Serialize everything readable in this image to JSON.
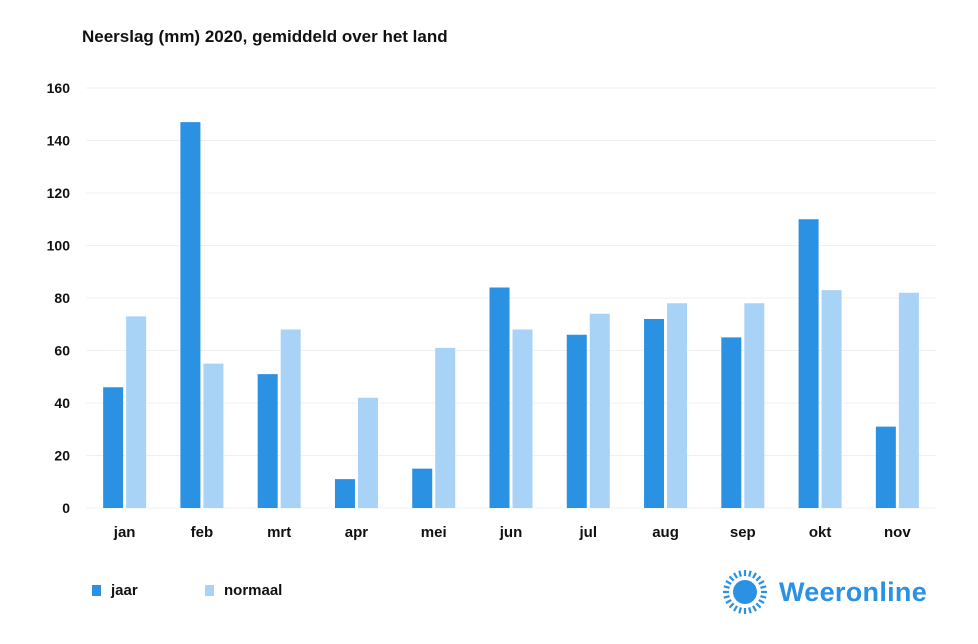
{
  "chart_data": {
    "type": "bar",
    "title": "Neerslag (mm) 2020, gemiddeld over het land",
    "categories": [
      "jan",
      "feb",
      "mrt",
      "apr",
      "mei",
      "jun",
      "jul",
      "aug",
      "sep",
      "okt",
      "nov"
    ],
    "series": [
      {
        "name": "jaar",
        "values": [
          46,
          147,
          51,
          11,
          15,
          84,
          66,
          72,
          65,
          110,
          31
        ],
        "color": "#2b91e3"
      },
      {
        "name": "normaal",
        "values": [
          73,
          55,
          68,
          42,
          61,
          68,
          74,
          78,
          78,
          83,
          82
        ],
        "color": "#a9d2f7"
      }
    ],
    "ylim": [
      0,
      160
    ],
    "yticks": [
      0,
      20,
      40,
      60,
      80,
      100,
      120,
      140,
      160
    ],
    "grid": true,
    "legend": "bottom-left"
  },
  "brand": {
    "name": "Weeronline",
    "color": "#2b91e3",
    "icon": "sun-logo-icon"
  }
}
